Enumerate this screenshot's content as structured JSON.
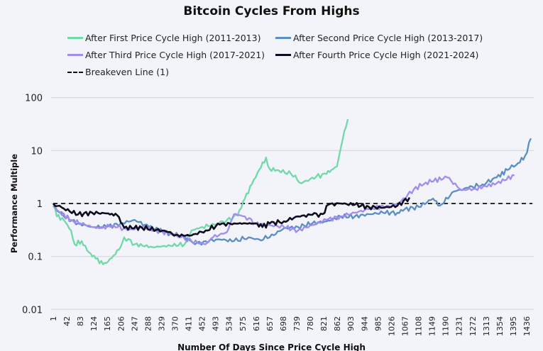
{
  "chart_data": {
    "type": "line",
    "title": "Bitcoin Cycles From Highs",
    "xlabel": "Number Of Days Since Price Cycle High",
    "ylabel": "Performance Multiple",
    "yscale": "log",
    "ylim": [
      0.01,
      100
    ],
    "xlim": [
      1,
      1470
    ],
    "yticks": [
      "100",
      "10",
      "1",
      "0.1",
      "0.01"
    ],
    "ytick_values": [
      100,
      10,
      1,
      0.1,
      0.01
    ],
    "xticks": [
      "1",
      "42",
      "83",
      "124",
      "165",
      "206",
      "247",
      "288",
      "329",
      "370",
      "411",
      "452",
      "493",
      "534",
      "575",
      "616",
      "657",
      "698",
      "739",
      "780",
      "821",
      "862",
      "903",
      "944",
      "985",
      "1026",
      "1067",
      "1108",
      "1149",
      "1190",
      "1231",
      "1272",
      "1313",
      "1354",
      "1395",
      "1436"
    ],
    "grid": "horizontal",
    "legend_position": "top",
    "breakeven": {
      "name": "Breakeven Line (1)",
      "value": 1,
      "color": "#111111"
    },
    "series": [
      {
        "name": "After First Price Cycle High (2011-2013)",
        "color": "#6fd9a8",
        "points": [
          [
            1,
            0.91
          ],
          [
            12,
            0.57
          ],
          [
            33,
            0.49
          ],
          [
            55,
            0.31
          ],
          [
            66,
            0.17
          ],
          [
            87,
            0.195
          ],
          [
            109,
            0.12
          ],
          [
            130,
            0.091
          ],
          [
            152,
            0.071
          ],
          [
            162,
            0.075
          ],
          [
            184,
            0.105
          ],
          [
            205,
            0.15
          ],
          [
            216,
            0.23
          ],
          [
            248,
            0.17
          ],
          [
            302,
            0.15
          ],
          [
            356,
            0.16
          ],
          [
            399,
            0.17
          ],
          [
            420,
            0.31
          ],
          [
            453,
            0.36
          ],
          [
            496,
            0.41
          ],
          [
            528,
            0.49
          ],
          [
            560,
            0.6
          ],
          [
            582,
            1.24
          ],
          [
            603,
            2.3
          ],
          [
            625,
            4.3
          ],
          [
            646,
            7.4
          ],
          [
            657,
            4.5
          ],
          [
            679,
            4.3
          ],
          [
            722,
            3.6
          ],
          [
            754,
            2.4
          ],
          [
            786,
            3.1
          ],
          [
            829,
            3.6
          ],
          [
            844,
            4.3
          ],
          [
            861,
            5.0
          ],
          [
            872,
            10.7
          ],
          [
            883,
            23
          ],
          [
            894,
            39
          ]
        ]
      },
      {
        "name": "After Second Price Cycle High (2013-2017)",
        "color": "#5b8ec2",
        "points": [
          [
            1,
            0.91
          ],
          [
            33,
            0.57
          ],
          [
            76,
            0.42
          ],
          [
            119,
            0.36
          ],
          [
            162,
            0.36
          ],
          [
            205,
            0.42
          ],
          [
            248,
            0.49
          ],
          [
            291,
            0.36
          ],
          [
            356,
            0.27
          ],
          [
            399,
            0.23
          ],
          [
            431,
            0.17
          ],
          [
            463,
            0.195
          ],
          [
            506,
            0.21
          ],
          [
            549,
            0.195
          ],
          [
            593,
            0.23
          ],
          [
            625,
            0.21
          ],
          [
            657,
            0.23
          ],
          [
            700,
            0.34
          ],
          [
            743,
            0.36
          ],
          [
            786,
            0.42
          ],
          [
            829,
            0.46
          ],
          [
            872,
            0.57
          ],
          [
            915,
            0.57
          ],
          [
            958,
            0.63
          ],
          [
            1001,
            0.67
          ],
          [
            1044,
            0.67
          ],
          [
            1066,
            0.78
          ],
          [
            1109,
            0.86
          ],
          [
            1152,
            1.24
          ],
          [
            1173,
            0.91
          ],
          [
            1216,
            1.69
          ],
          [
            1259,
            1.97
          ],
          [
            1302,
            2.3
          ],
          [
            1345,
            3.1
          ],
          [
            1378,
            4.3
          ],
          [
            1410,
            5.8
          ],
          [
            1431,
            7.9
          ],
          [
            1449,
            17
          ]
        ]
      },
      {
        "name": "After Third Price Cycle High (2017-2021)",
        "color": "#a18cf0",
        "points": [
          [
            1,
            0.91
          ],
          [
            22,
            0.67
          ],
          [
            55,
            0.49
          ],
          [
            98,
            0.39
          ],
          [
            141,
            0.34
          ],
          [
            184,
            0.39
          ],
          [
            227,
            0.31
          ],
          [
            270,
            0.36
          ],
          [
            313,
            0.31
          ],
          [
            356,
            0.27
          ],
          [
            388,
            0.23
          ],
          [
            420,
            0.195
          ],
          [
            463,
            0.17
          ],
          [
            485,
            0.23
          ],
          [
            528,
            0.29
          ],
          [
            549,
            0.63
          ],
          [
            582,
            0.57
          ],
          [
            614,
            0.42
          ],
          [
            657,
            0.39
          ],
          [
            700,
            0.36
          ],
          [
            743,
            0.31
          ],
          [
            786,
            0.39
          ],
          [
            829,
            0.49
          ],
          [
            872,
            0.57
          ],
          [
            915,
            0.67
          ],
          [
            958,
            0.78
          ],
          [
            1012,
            0.91
          ],
          [
            1044,
            0.95
          ],
          [
            1094,
            1.85
          ],
          [
            1130,
            2.5
          ],
          [
            1195,
            3.1
          ],
          [
            1238,
            1.8
          ],
          [
            1281,
            1.9
          ],
          [
            1345,
            2.4
          ],
          [
            1399,
            3.4
          ]
        ]
      },
      {
        "name": "After Fourth Price Cycle High (2021-2024)",
        "color": "#0d0d1f",
        "points": [
          [
            1,
            1.0
          ],
          [
            33,
            0.8
          ],
          [
            76,
            0.62
          ],
          [
            119,
            0.67
          ],
          [
            162,
            0.65
          ],
          [
            195,
            0.6
          ],
          [
            216,
            0.35
          ],
          [
            270,
            0.35
          ],
          [
            356,
            0.29
          ],
          [
            366,
            0.25
          ],
          [
            420,
            0.25
          ],
          [
            463,
            0.31
          ],
          [
            506,
            0.4
          ],
          [
            549,
            0.42
          ],
          [
            614,
            0.42
          ],
          [
            635,
            0.36
          ],
          [
            657,
            0.42
          ],
          [
            700,
            0.46
          ],
          [
            743,
            0.57
          ],
          [
            786,
            0.61
          ],
          [
            818,
            0.63
          ],
          [
            835,
            0.95
          ],
          [
            872,
            1.0
          ],
          [
            915,
            0.95
          ],
          [
            958,
            0.86
          ],
          [
            1001,
            0.83
          ],
          [
            1044,
            0.91
          ],
          [
            1081,
            1.3
          ]
        ]
      }
    ]
  }
}
